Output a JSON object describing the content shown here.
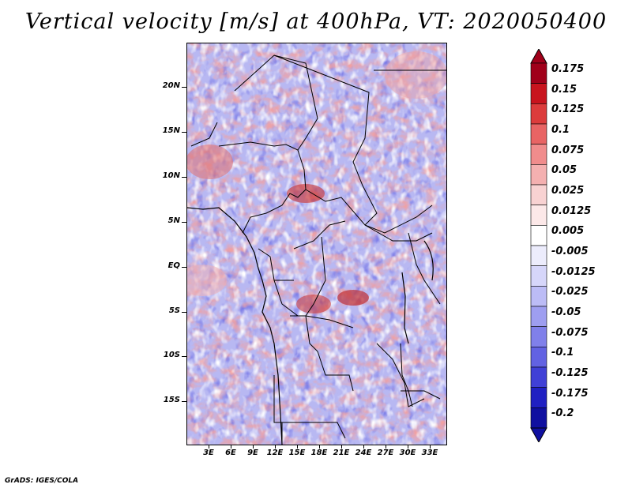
{
  "title": "Vertical velocity [m/s] at 400hPa, VT: 2020050400",
  "credit": "GrADS: IGES/COLA",
  "map": {
    "lat_labels": [
      "20N",
      "15N",
      "10N",
      "5N",
      "EQ",
      "5S",
      "10S",
      "15S"
    ],
    "lon_labels": [
      "3E",
      "6E",
      "9E",
      "12E",
      "15E",
      "18E",
      "21E",
      "24E",
      "27E",
      "30E",
      "33E"
    ]
  },
  "colorbar": {
    "levels": [
      "0.175",
      "0.15",
      "0.125",
      "0.1",
      "0.075",
      "0.05",
      "0.025",
      "0.0125",
      "0.005",
      "-0.005",
      "-0.0125",
      "-0.025",
      "-0.05",
      "-0.075",
      "-0.1",
      "-0.125",
      "-0.175",
      "-0.2"
    ],
    "colors": [
      "#a0001a",
      "#c8141e",
      "#dc3c3c",
      "#e86464",
      "#f08c8c",
      "#f4b0b0",
      "#f8d2d2",
      "#fce8e8",
      "#ffffff",
      "#ececfc",
      "#d6d6fa",
      "#bcbcf6",
      "#9e9ef0",
      "#8080ea",
      "#6262e2",
      "#4040d6",
      "#2020c2",
      "#1010a0"
    ]
  },
  "colors": {
    "field_bg": "#b4b4f2",
    "border": "#000000"
  }
}
